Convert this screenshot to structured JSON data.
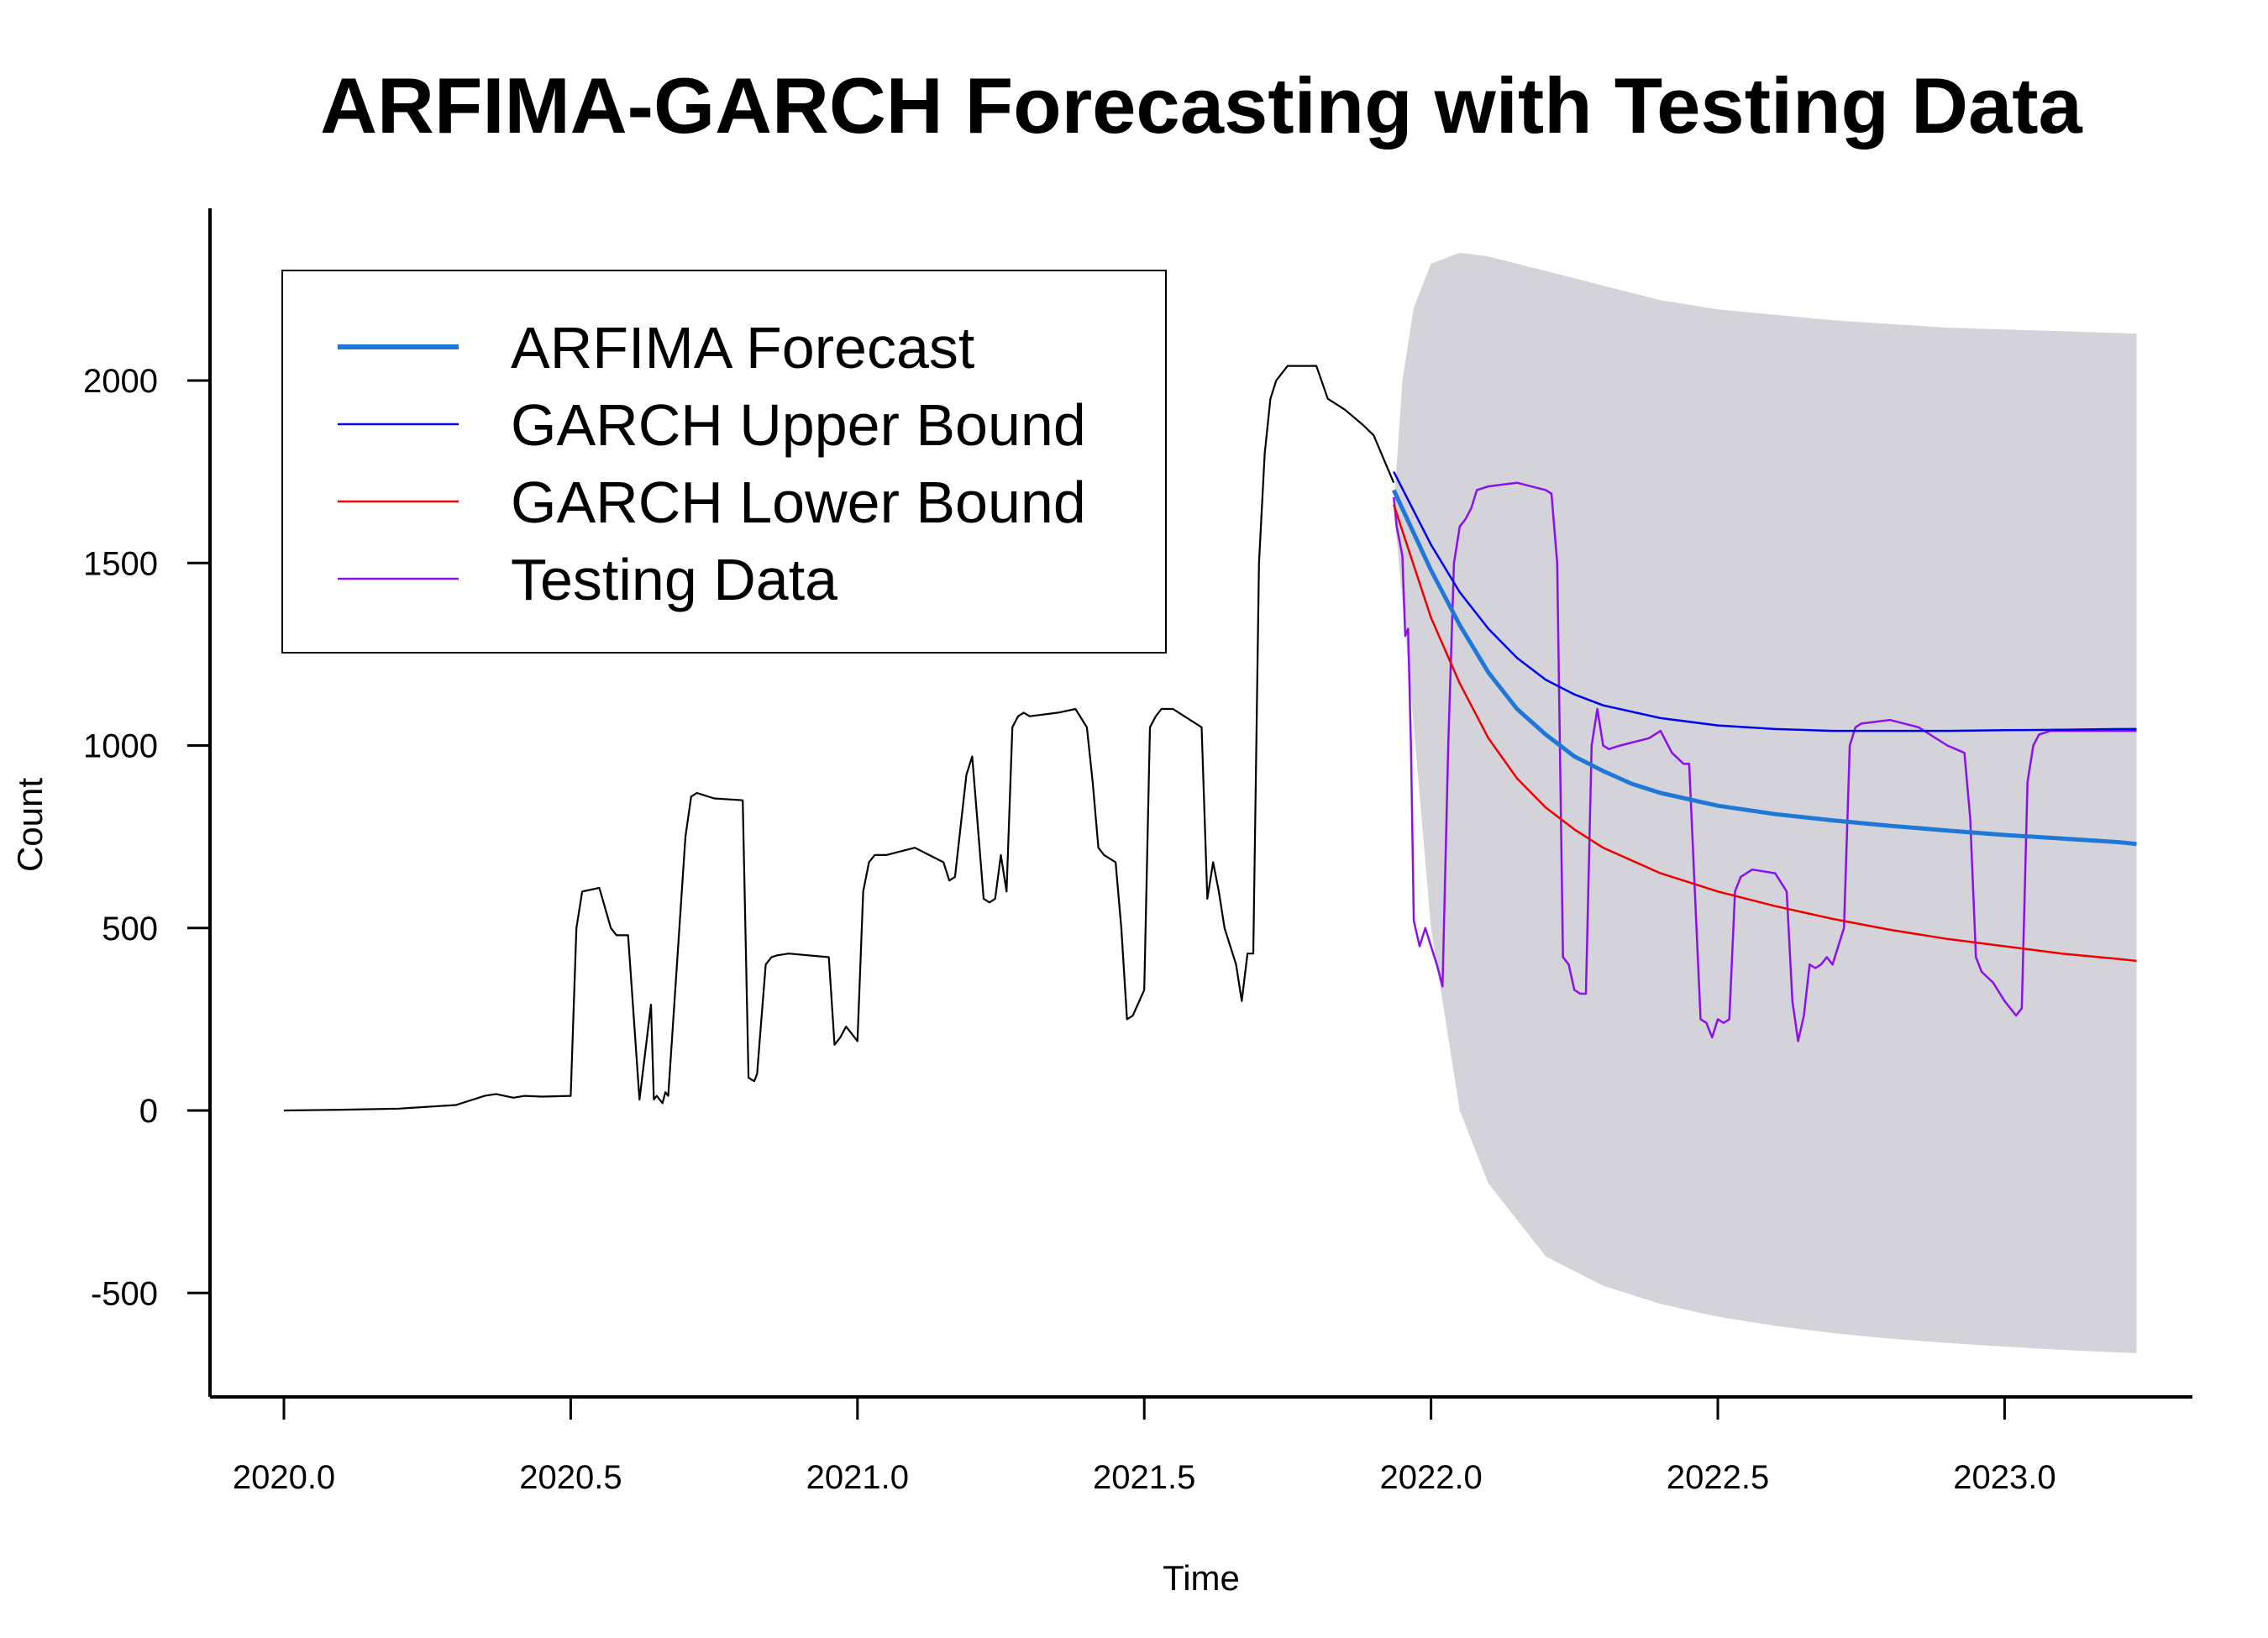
{
  "chart_data": {
    "type": "line",
    "title": "ARFIMA-GARCH Forecasting with Testing Data",
    "xlabel": "Time",
    "ylabel": "Count",
    "xlim": [
      1999.87,
      2023.36
    ],
    "ylim": [
      -790,
      2470
    ],
    "x_ticks": [
      2020.0,
      2020.5,
      2021.0,
      2021.5,
      2022.0,
      2022.5,
      2023.0
    ],
    "x_tick_labels": [
      "2020.0",
      "2020.5",
      "2021.0",
      "2021.5",
      "2022.0",
      "2022.5",
      "2023.0"
    ],
    "y_ticks": [
      -500,
      0,
      500,
      1000,
      1500,
      2000
    ],
    "y_tick_labels": [
      "-500",
      "0",
      "500",
      "1000",
      "1500",
      "2000"
    ],
    "legend_position": "top-left",
    "legend": [
      {
        "label": "ARFIMA Forecast",
        "color": "#1f78d8"
      },
      {
        "label": "GARCH Upper Bound",
        "color": "#0000ee"
      },
      {
        "label": "GARCH Lower Bound",
        "color": "#ee0000"
      },
      {
        "label": "Testing Data",
        "color": "#8a10ee"
      }
    ],
    "series": [
      {
        "role": "training",
        "color": "#000000",
        "x": [
          2020.0,
          2020.1,
          2020.2,
          2020.3,
          2020.35,
          2020.37,
          2020.4,
          2020.42,
          2020.45,
          2020.5,
          2020.51,
          2020.52,
          2020.55,
          2020.57,
          2020.58,
          2020.6,
          2020.62,
          2020.64,
          2020.645,
          2020.65,
          2020.66,
          2020.665,
          2020.67,
          2020.7,
          2020.71,
          2020.72,
          2020.73,
          2020.75,
          2020.8,
          2020.81,
          2020.82,
          2020.825,
          2020.83,
          2020.84,
          2020.85,
          2020.86,
          2020.88,
          2020.95,
          2020.96,
          2020.97,
          2020.98,
          2021.0,
          2021.01,
          2021.02,
          2021.03,
          2021.05,
          2021.1,
          2021.15,
          2021.16,
          2021.17,
          2021.19,
          2021.2,
          2021.22,
          2021.23,
          2021.24,
          2021.25,
          2021.26,
          2021.27,
          2021.28,
          2021.29,
          2021.3,
          2021.35,
          2021.38,
          2021.4,
          2021.41,
          2021.42,
          2021.43,
          2021.45,
          2021.46,
          2021.47,
          2021.48,
          2021.5,
          2021.51,
          2021.52,
          2021.53,
          2021.55,
          2021.6,
          2021.61,
          2021.62,
          2021.63,
          2021.64,
          2021.66,
          2021.67,
          2021.68,
          2021.69,
          2021.7,
          2021.71,
          2021.72,
          2021.73,
          2021.75,
          2021.8,
          2021.82,
          2021.85,
          2021.88,
          2021.9,
          2021.935
        ],
        "y": [
          0,
          2,
          5,
          15,
          40,
          45,
          35,
          40,
          38,
          40,
          500,
          600,
          610,
          500,
          480,
          480,
          30,
          290,
          30,
          40,
          20,
          50,
          40,
          750,
          860,
          870,
          865,
          855,
          850,
          90,
          80,
          100,
          200,
          400,
          420,
          425,
          430,
          420,
          180,
          200,
          230,
          190,
          600,
          680,
          700,
          700,
          720,
          680,
          630,
          640,
          920,
          970,
          580,
          570,
          580,
          700,
          600,
          1050,
          1080,
          1090,
          1080,
          1090,
          1100,
          1050,
          900,
          720,
          700,
          680,
          500,
          250,
          260,
          330,
          1050,
          1080,
          1100,
          1100,
          1050,
          580,
          680,
          600,
          500,
          400,
          300,
          430,
          430,
          1500,
          1800,
          1950,
          2000,
          2040,
          2040,
          1950,
          1920,
          1880,
          1850,
          1720
        ]
      },
      {
        "name": "ARFIMA Forecast",
        "color": "#1f78d8",
        "x": [
          2021.935,
          2022.0,
          2022.05,
          2022.1,
          2022.15,
          2022.2,
          2022.25,
          2022.3,
          2022.35,
          2022.4,
          2022.5,
          2022.6,
          2022.7,
          2022.8,
          2022.9,
          2023.0,
          2023.1,
          2023.2,
          2023.23
        ],
        "y": [
          1700,
          1480,
          1330,
          1200,
          1100,
          1030,
          970,
          930,
          895,
          870,
          835,
          812,
          795,
          780,
          767,
          755,
          745,
          735,
          730
        ]
      },
      {
        "name": "GARCH Upper Bound",
        "color": "#0000ee",
        "x": [
          2021.935,
          2022.0,
          2022.05,
          2022.1,
          2022.15,
          2022.2,
          2022.25,
          2022.3,
          2022.4,
          2022.5,
          2022.6,
          2022.7,
          2022.8,
          2022.9,
          2023.0,
          2023.1,
          2023.2,
          2023.23
        ],
        "y": [
          1750,
          1550,
          1420,
          1320,
          1240,
          1180,
          1140,
          1110,
          1075,
          1055,
          1045,
          1040,
          1040,
          1040,
          1042,
          1043,
          1045,
          1045
        ]
      },
      {
        "name": "GARCH Lower Bound",
        "color": "#ee0000",
        "x": [
          2021.935,
          2022.0,
          2022.05,
          2022.1,
          2022.15,
          2022.2,
          2022.25,
          2022.3,
          2022.4,
          2022.5,
          2022.6,
          2022.7,
          2022.8,
          2022.9,
          2023.0,
          2023.1,
          2023.2,
          2023.23
        ],
        "y": [
          1660,
          1350,
          1170,
          1020,
          910,
          830,
          770,
          720,
          650,
          600,
          560,
          525,
          495,
          470,
          450,
          430,
          415,
          410
        ]
      },
      {
        "name": "Testing Data",
        "color": "#8a10ee",
        "x": [
          2021.935,
          2021.94,
          2021.95,
          2021.955,
          2021.96,
          2021.965,
          2021.97,
          2021.98,
          2021.99,
          2022.0,
          2022.01,
          2022.02,
          2022.03,
          2022.04,
          2022.05,
          2022.06,
          2022.07,
          2022.08,
          2022.1,
          2022.15,
          2022.2,
          2022.21,
          2022.22,
          2022.23,
          2022.24,
          2022.25,
          2022.26,
          2022.27,
          2022.28,
          2022.29,
          2022.3,
          2022.31,
          2022.33,
          2022.38,
          2022.4,
          2022.42,
          2022.44,
          2022.45,
          2022.46,
          2022.47,
          2022.48,
          2022.49,
          2022.5,
          2022.51,
          2022.52,
          2022.53,
          2022.54,
          2022.55,
          2022.56,
          2022.6,
          2022.62,
          2022.63,
          2022.64,
          2022.65,
          2022.66,
          2022.67,
          2022.68,
          2022.69,
          2022.7,
          2022.72,
          2022.73,
          2022.74,
          2022.75,
          2022.8,
          2022.85,
          2022.9,
          2022.93,
          2022.94,
          2022.95,
          2022.96,
          2022.98,
          2023.0,
          2023.02,
          2023.03,
          2023.04,
          2023.05,
          2023.06,
          2023.08,
          2023.1,
          2023.15,
          2023.2,
          2023.23
        ],
        "y": [
          1680,
          1600,
          1520,
          1300,
          1320,
          1000,
          520,
          450,
          500,
          450,
          400,
          340,
          1000,
          1500,
          1600,
          1620,
          1650,
          1700,
          1710,
          1720,
          1700,
          1690,
          1500,
          420,
          400,
          330,
          320,
          320,
          1000,
          1100,
          1000,
          990,
          1000,
          1020,
          1040,
          980,
          950,
          950,
          600,
          250,
          240,
          200,
          250,
          240,
          250,
          600,
          640,
          650,
          660,
          650,
          600,
          300,
          190,
          260,
          400,
          390,
          400,
          420,
          400,
          500,
          1000,
          1050,
          1060,
          1070,
          1050,
          1000,
          980,
          800,
          420,
          380,
          350,
          300,
          260,
          280,
          900,
          1000,
          1030,
          1040,
          1040,
          1040,
          1040,
          1040
        ]
      }
    ],
    "band": {
      "role": "forecast interval",
      "color": "#d3d3d9",
      "x": [
        2021.935,
        2021.95,
        2021.97,
        2022.0,
        2022.05,
        2022.1,
        2022.2,
        2022.3,
        2022.4,
        2022.5,
        2022.6,
        2022.7,
        2022.8,
        2022.9,
        2023.0,
        2023.1,
        2023.2,
        2023.23
      ],
      "upper": [
        1650,
        2000,
        2200,
        2320,
        2350,
        2340,
        2300,
        2260,
        2220,
        2195,
        2180,
        2165,
        2155,
        2145,
        2140,
        2135,
        2130,
        2128
      ],
      "lower": [
        1650,
        1400,
        1050,
        500,
        0,
        -200,
        -400,
        -480,
        -530,
        -565,
        -590,
        -610,
        -625,
        -637,
        -647,
        -656,
        -663,
        -665
      ]
    }
  }
}
